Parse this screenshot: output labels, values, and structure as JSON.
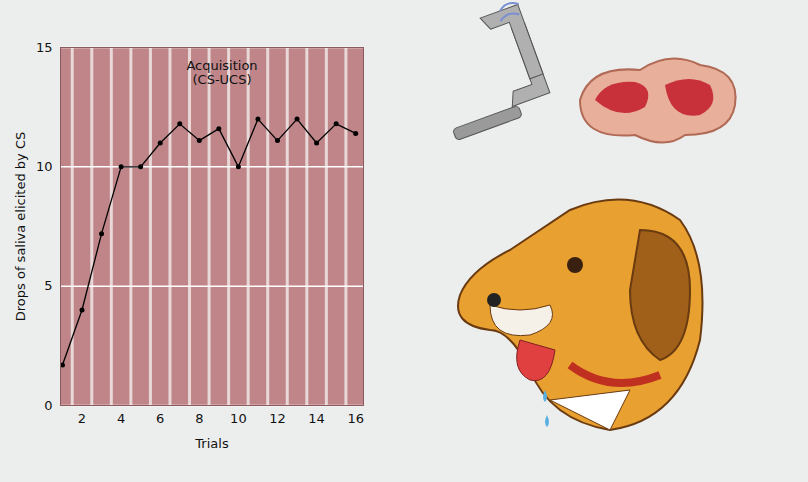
{
  "chart_data": {
    "type": "line",
    "xlabel": "Trials",
    "ylabel": "Drops of saliva elicited by CS",
    "annotation": "Acquisition\n(CS-UCS)",
    "x": [
      1,
      2,
      3,
      4,
      5,
      6,
      7,
      8,
      9,
      10,
      11,
      12,
      13,
      14,
      15,
      16
    ],
    "values": [
      1.7,
      4,
      7.2,
      10,
      10,
      11,
      11.8,
      11.1,
      11.6,
      10,
      12,
      11.1,
      12,
      11,
      11.8,
      11.4
    ],
    "color": "#000000",
    "marker": "circle",
    "xlim": [
      0.9,
      16.4
    ],
    "xticks": [
      2,
      4,
      6,
      8,
      10,
      12,
      14,
      16
    ],
    "ylim": [
      0,
      15
    ],
    "yticks": [
      0,
      5,
      10,
      15
    ],
    "grid": true
  }
}
